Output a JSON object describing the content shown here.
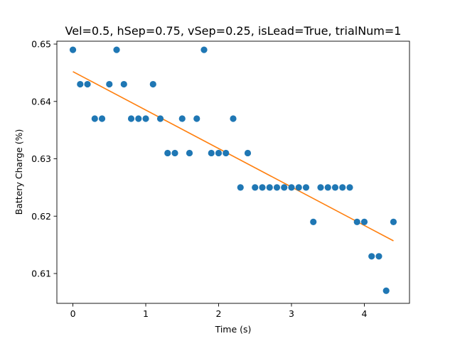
{
  "chart_data": {
    "type": "scatter",
    "title": "Vel=0.5, hSep=0.75, vSep=0.25, isLead=True, trialNum=1",
    "xlabel": "Time (s)",
    "ylabel": "Battery Charge (%)",
    "xlim": [
      -0.22,
      4.62
    ],
    "ylim": [
      0.6048,
      0.6505
    ],
    "x_ticks": [
      0,
      1,
      2,
      3,
      4
    ],
    "x_tick_labels": [
      "0",
      "1",
      "2",
      "3",
      "4"
    ],
    "y_ticks": [
      0.61,
      0.62,
      0.63,
      0.64,
      0.65
    ],
    "y_tick_labels": [
      "0.61",
      "0.62",
      "0.63",
      "0.64",
      "0.65"
    ],
    "grid": false,
    "series": [
      {
        "kind": "scatter",
        "color": "#1f77b4",
        "x": [
          0.0,
          0.1,
          0.2,
          0.3,
          0.4,
          0.5,
          0.6,
          0.7,
          0.8,
          0.9,
          1.0,
          1.1,
          1.2,
          1.3,
          1.4,
          1.5,
          1.6,
          1.7,
          1.8,
          1.9,
          2.0,
          2.1,
          2.2,
          2.3,
          2.4,
          2.5,
          2.6,
          2.7,
          2.8,
          2.9,
          3.0,
          3.1,
          3.2,
          3.3,
          3.4,
          3.5,
          3.6,
          3.7,
          3.8,
          3.9,
          4.0,
          4.1,
          4.2,
          4.3,
          4.4
        ],
        "y": [
          0.649,
          0.643,
          0.643,
          0.637,
          0.637,
          0.643,
          0.649,
          0.643,
          0.637,
          0.637,
          0.637,
          0.643,
          0.637,
          0.631,
          0.631,
          0.637,
          0.631,
          0.637,
          0.649,
          0.631,
          0.631,
          0.631,
          0.637,
          0.625,
          0.631,
          0.625,
          0.625,
          0.625,
          0.625,
          0.625,
          0.625,
          0.625,
          0.625,
          0.619,
          0.625,
          0.625,
          0.625,
          0.625,
          0.625,
          0.619,
          0.619,
          0.613,
          0.613,
          0.607,
          0.619
        ]
      },
      {
        "kind": "line",
        "color": "#ff7f0e",
        "x": [
          0.0,
          4.4
        ],
        "y": [
          0.6452,
          0.6157
        ]
      }
    ]
  }
}
